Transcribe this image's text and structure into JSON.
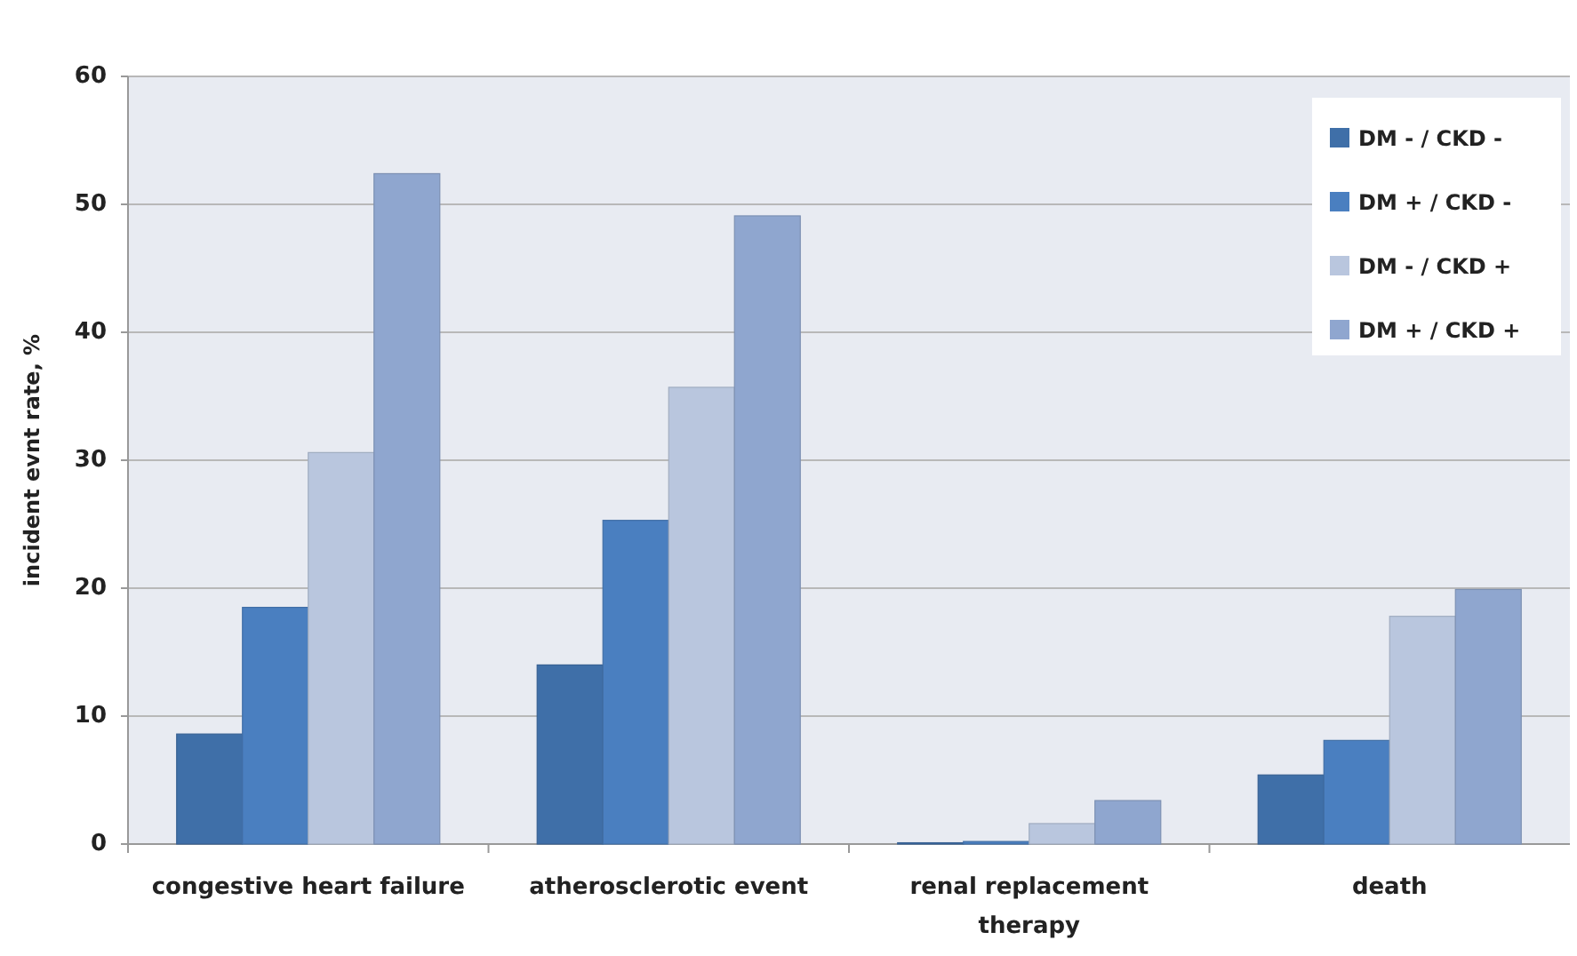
{
  "chart_data": {
    "type": "bar",
    "ylabel": "incident evnt rate, %",
    "categories": [
      "congestive heart failure",
      "atherosclerotic event",
      "renal replacement therapy",
      "death"
    ],
    "series": [
      {
        "name": "DM - / CKD -",
        "color": "#3f6fa8",
        "values": [
          8.6,
          14.0,
          0.1,
          5.4
        ]
      },
      {
        "name": "DM + / CKD -",
        "color": "#4a7fc0",
        "values": [
          18.5,
          25.3,
          0.2,
          8.1
        ]
      },
      {
        "name": "DM - / CKD +",
        "color": "#b9c6de",
        "values": [
          30.6,
          35.7,
          1.6,
          17.8
        ]
      },
      {
        "name": "DM + / CKD +",
        "color": "#8fa6cf",
        "values": [
          52.4,
          49.1,
          3.4,
          19.9
        ]
      }
    ],
    "ylim": [
      0,
      60
    ],
    "yticks": [
      0,
      10,
      20,
      30,
      40,
      50,
      60
    ],
    "grid": "y",
    "legend": "top right"
  }
}
